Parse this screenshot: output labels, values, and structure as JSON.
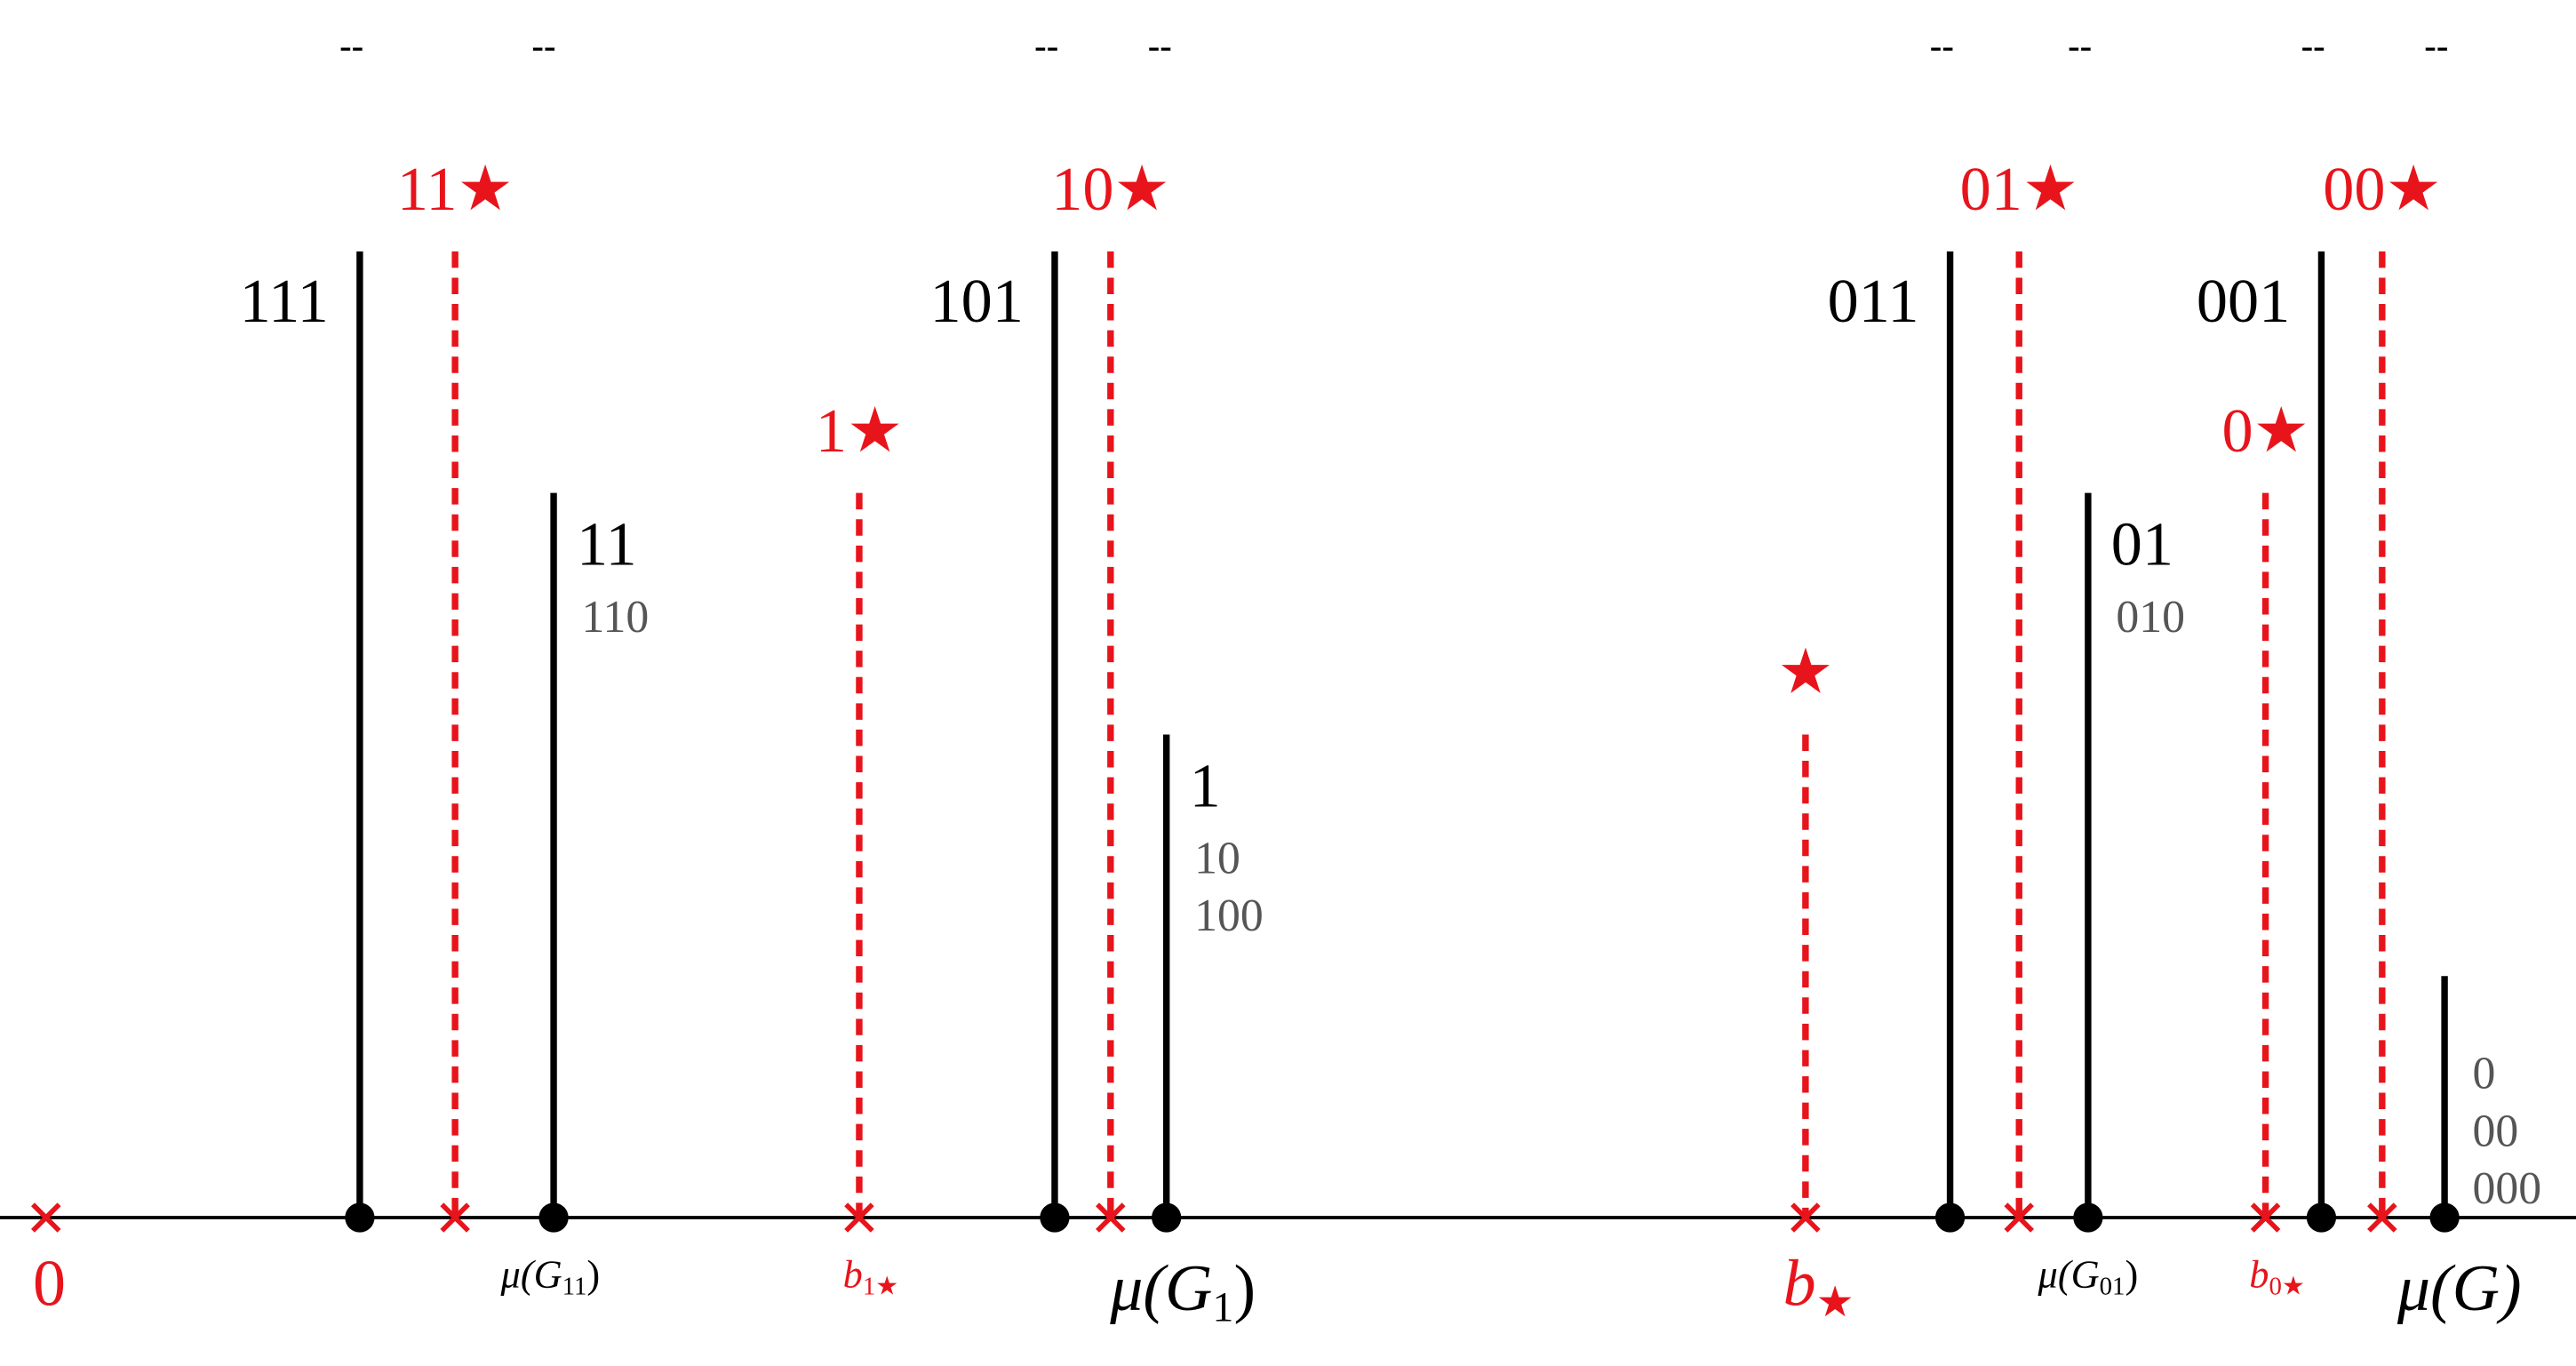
{
  "top_marks": [
    "--",
    "--",
    "--",
    "--",
    "--",
    "--",
    "--",
    "--"
  ],
  "stems": [
    {
      "label": "111"
    },
    {
      "label": "11",
      "extra": [
        "110"
      ]
    },
    {
      "label": "101"
    },
    {
      "label": "1",
      "extra": [
        "10",
        "100"
      ]
    },
    {
      "label": "011"
    },
    {
      "label": "01",
      "extra": [
        "010"
      ]
    },
    {
      "label": "001"
    },
    {
      "extra": [
        "0",
        "00",
        "000"
      ]
    }
  ],
  "red_stems": [
    {
      "label": "11★"
    },
    {
      "label": "1★"
    },
    {
      "label": "10★"
    },
    {
      "label": "★"
    },
    {
      "label": "01★"
    },
    {
      "label": "0★"
    },
    {
      "label": "00★"
    }
  ],
  "axis_labels": [
    {
      "text": "0"
    },
    {
      "text": "b",
      "sub": "1★"
    },
    {
      "text": "μ(G",
      "sub": "11",
      "tail": ")"
    },
    {
      "text": "μ(G",
      "sub": "1",
      "tail": ")"
    },
    {
      "text": "b",
      "sub": "★"
    },
    {
      "text": "b",
      "sub": "0★"
    },
    {
      "text": "μ(G",
      "sub": "01",
      "tail": ")"
    },
    {
      "text": "μ(G)"
    }
  ]
}
